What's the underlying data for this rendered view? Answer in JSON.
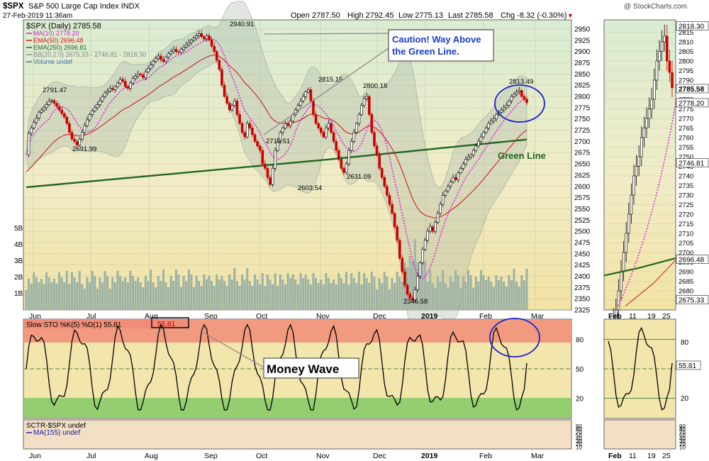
{
  "header": {
    "symbol": "$SPX",
    "name": "S&P 500 Large Cap Index",
    "exchange": "INDX",
    "date": "27-Feb-2019 11:36am",
    "watermark": "@ StockCharts.com",
    "quote": {
      "open_label": "Open",
      "open": "2787.50",
      "high_label": "High",
      "high": "2792.45",
      "low_label": "Low",
      "low": "2775.13",
      "last_label": "Last",
      "last": "2785.58",
      "chg_label": "Chg",
      "chg": "-8.32 (-0.30%)"
    }
  },
  "legend": [
    {
      "label": "$SPX (Daily) 2785.58",
      "color": "#000000"
    },
    {
      "label": "MA(10) 2778.20",
      "color": "#dd22dd"
    },
    {
      "label": "EMA(50) 2696.48",
      "color": "#cc2222"
    },
    {
      "label": "EMA(250) 2696.81",
      "color": "#226622"
    },
    {
      "label": "BB(20,2.0) 2675.33 - 2746.81 - 2818.30",
      "color": "#888888"
    },
    {
      "label": "Volume undef",
      "color": "#4477aa"
    }
  ],
  "annotations": {
    "caution_line1": "Caution! Way Above",
    "caution_line2": "the Green Line.",
    "green_line": "Green Line",
    "money_wave": "Money Wave"
  },
  "sto_label": "Slow STO %K(5) %D(1) 55.81",
  "sto_value": "55.81",
  "sctr_label": "SCTR-$SPX undef",
  "sctr_ma_label": "MA(155) undef",
  "chart_data": {
    "type": "line",
    "title": "$SPX S&P 500 Large Cap Index",
    "x_labels": [
      "Jun",
      "Jul",
      "Aug",
      "Sep",
      "Oct",
      "Nov",
      "Dec",
      "2019",
      "Feb",
      "Mar"
    ],
    "ylim": [
      2325,
      2950
    ],
    "yticks": [
      2950,
      2925,
      2900,
      2875,
      2850,
      2825,
      2800,
      2775,
      2750,
      2725,
      2700,
      2675,
      2650,
      2625,
      2600,
      2575,
      2550,
      2525,
      2500,
      2475,
      2450,
      2425,
      2400,
      2375,
      2350,
      2325
    ],
    "volume_ticks": [
      "5B",
      "4B",
      "3B",
      "2B",
      "1B"
    ],
    "price": [
      2670,
      2718,
      2730,
      2742,
      2752,
      2765,
      2770,
      2775,
      2782,
      2789,
      2791,
      2785,
      2778,
      2770,
      2762,
      2754,
      2740,
      2720,
      2705,
      2700,
      2692,
      2705,
      2720,
      2735,
      2748,
      2760,
      2768,
      2775,
      2782,
      2790,
      2800,
      2808,
      2812,
      2818,
      2815,
      2822,
      2830,
      2838,
      2834,
      2822,
      2818,
      2830,
      2840,
      2845,
      2850,
      2848,
      2842,
      2855,
      2862,
      2870,
      2878,
      2885,
      2890,
      2882,
      2878,
      2888,
      2895,
      2900,
      2905,
      2900,
      2898,
      2905,
      2910,
      2915,
      2920,
      2925,
      2930,
      2935,
      2940,
      2933,
      2928,
      2935,
      2926,
      2912,
      2900,
      2880,
      2860,
      2825,
      2800,
      2785,
      2770,
      2780,
      2790,
      2760,
      2740,
      2720,
      2710,
      2740,
      2730,
      2715,
      2700,
      2690,
      2680,
      2650,
      2640,
      2620,
      2604,
      2640,
      2680,
      2700,
      2720,
      2730,
      2740,
      2735,
      2745,
      2760,
      2770,
      2780,
      2790,
      2800,
      2810,
      2815,
      2790,
      2760,
      2740,
      2730,
      2720,
      2710,
      2730,
      2740,
      2720,
      2700,
      2680,
      2660,
      2640,
      2631,
      2650,
      2680,
      2700,
      2720,
      2740,
      2760,
      2780,
      2795,
      2800,
      2760,
      2720,
      2690,
      2670,
      2640,
      2620,
      2600,
      2580,
      2560,
      2540,
      2510,
      2480,
      2440,
      2410,
      2380,
      2360,
      2351,
      2347,
      2370,
      2400,
      2430,
      2460,
      2480,
      2500,
      2510,
      2500,
      2520,
      2540,
      2560,
      2580,
      2590,
      2600,
      2610,
      2620,
      2615,
      2630,
      2640,
      2650,
      2660,
      2665,
      2670,
      2680,
      2690,
      2700,
      2710,
      2720,
      2730,
      2740,
      2745,
      2750,
      2760,
      2765,
      2770,
      2775,
      2780,
      2790,
      2800,
      2805,
      2810,
      2813,
      2800,
      2794,
      2786
    ],
    "series": [
      {
        "name": "MA(10)",
        "value": 2778.2,
        "color": "#dd22dd"
      },
      {
        "name": "EMA(50)",
        "value": 2696.48,
        "color": "#cc2222"
      },
      {
        "name": "EMA(250)",
        "value": 2696.81,
        "color": "#226622"
      }
    ],
    "point_labels": [
      {
        "text": "2791.47",
        "value": 2791.47
      },
      {
        "text": "2691.99",
        "value": 2691.99
      },
      {
        "text": "2940.91",
        "value": 2940.91
      },
      {
        "text": "2710.51",
        "value": 2710.51
      },
      {
        "text": "2603.54",
        "value": 2603.54
      },
      {
        "text": "2815.15",
        "value": 2815.15
      },
      {
        "text": "2800.18",
        "value": 2800.18
      },
      {
        "text": "2631.09",
        "value": 2631.09
      },
      {
        "text": "2346.58",
        "value": 2346.58
      },
      {
        "text": "2813.49",
        "value": 2813.49
      }
    ],
    "side_panel": {
      "x_labels": [
        "Feb",
        "11",
        "19",
        "25"
      ],
      "ylim": [
        2670,
        2820
      ],
      "yticks": [
        2815,
        2810,
        2805,
        2800,
        2795,
        2790,
        2785,
        2780,
        2775,
        2770,
        2765,
        2760,
        2755,
        2750,
        2745,
        2740,
        2735,
        2730,
        2725,
        2720,
        2715,
        2710,
        2705,
        2700,
        2695,
        2690,
        2685,
        2680,
        2675
      ],
      "flags": [
        {
          "text": "2818.30",
          "value": 2818.3,
          "color": "#ffffff"
        },
        {
          "text": "2785.58",
          "value": 2785.58,
          "color": "#ffffff"
        },
        {
          "text": "2778.20",
          "value": 2778.2,
          "color": "#ffffff"
        },
        {
          "text": "2746.81",
          "value": 2746.81,
          "color": "#ffffff"
        },
        {
          "text": "2696.48",
          "value": 2696.48,
          "color": "#ffffff"
        },
        {
          "text": "2675.33",
          "value": 2675.33,
          "color": "#ffffff"
        }
      ]
    },
    "stochastic": {
      "yticks": [
        "80",
        "50",
        "20"
      ],
      "last": 55.81
    },
    "sctr": {
      "yticks": [
        "90",
        "80",
        "70",
        "50",
        "40",
        "30",
        "20",
        "10"
      ]
    }
  }
}
